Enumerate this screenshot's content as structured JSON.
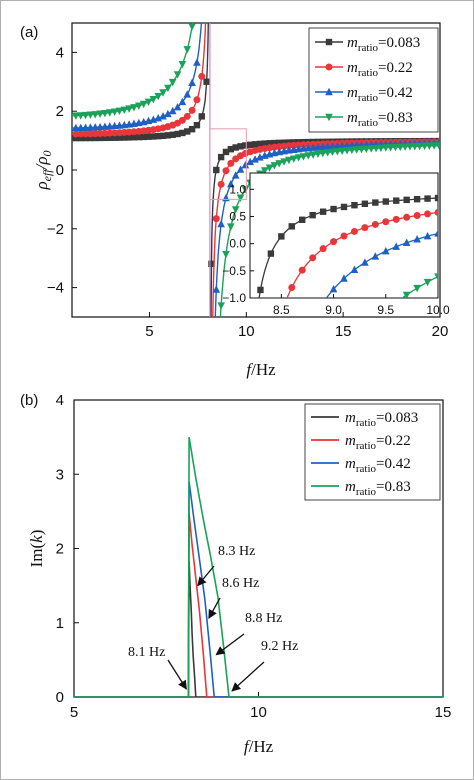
{
  "chart_data": [
    {
      "panel_label": "(a)",
      "type": "line",
      "xlabel": "f/Hz",
      "ylabel": "ρeff/ρ0",
      "xlim": [
        1,
        20
      ],
      "ylim": [
        -5,
        5
      ],
      "xticks": [
        "5",
        "10",
        "15",
        "20"
      ],
      "yticks": [
        "-4",
        "-2",
        "0",
        "2",
        "4"
      ],
      "legend_position": "top-right",
      "legend_prefix": "m",
      "legend_sub": "ratio",
      "series": [
        {
          "name": "=0.083",
          "color": "#3a3a3a",
          "marker": "square",
          "f0": 8.12,
          "B": 0.083
        },
        {
          "name": "=0.22",
          "color": "#e8363a",
          "marker": "circle",
          "f0": 8.12,
          "B": 0.22
        },
        {
          "name": "=0.42",
          "color": "#1f60c4",
          "marker": "triangle-up",
          "f0": 8.12,
          "B": 0.42
        },
        {
          "name": "=0.83",
          "color": "#1aa25a",
          "marker": "triangle-down",
          "f0": 8.12,
          "B": 0.83
        }
      ],
      "inset": {
        "xlim": [
          8.2,
          10.0
        ],
        "ylim": [
          -1.0,
          1.3
        ],
        "xticks": [
          "8.5",
          "9.0",
          "9.5",
          "10.0"
        ],
        "yticks": [
          "1.0",
          "0.5",
          "0.0",
          "-0.5",
          "-1.0"
        ]
      }
    },
    {
      "panel_label": "(b)",
      "type": "line",
      "xlabel": "f/Hz",
      "ylabel": "Im(k)",
      "xlim": [
        5,
        15
      ],
      "ylim": [
        0,
        4
      ],
      "xticks": [
        "5",
        "10",
        "15"
      ],
      "yticks": [
        "0",
        "1",
        "2",
        "3",
        "4"
      ],
      "legend_position": "top-right",
      "legend_prefix": "m",
      "legend_sub": "ratio",
      "series": [
        {
          "name": "=0.083",
          "color": "#3a3a3a",
          "x": [
            5,
            8.1,
            8.12,
            8.15,
            8.18,
            8.2,
            8.23,
            8.27,
            8.3,
            15
          ],
          "y": [
            0,
            0,
            1.83,
            1.45,
            1.15,
            0.85,
            0.55,
            0.25,
            0,
            0
          ]
        },
        {
          "name": "=0.22",
          "color": "#e8363a",
          "x": [
            5,
            8.1,
            8.12,
            8.2,
            8.3,
            8.4,
            8.5,
            8.6,
            15
          ],
          "y": [
            0,
            0,
            2.47,
            2.05,
            1.6,
            1.15,
            0.6,
            0,
            0
          ]
        },
        {
          "name": "=0.42",
          "color": "#1f60c4",
          "x": [
            5,
            8.1,
            8.12,
            8.25,
            8.4,
            8.55,
            8.7,
            8.8,
            15
          ],
          "y": [
            0,
            0,
            2.9,
            2.4,
            1.85,
            1.3,
            0.55,
            0,
            0
          ]
        },
        {
          "name": "=0.83",
          "color": "#1aa25a",
          "x": [
            5,
            8.1,
            8.12,
            8.3,
            8.5,
            8.7,
            8.9,
            9.05,
            9.2,
            15
          ],
          "y": [
            0,
            0,
            3.5,
            2.95,
            2.4,
            1.9,
            1.35,
            0.7,
            0,
            0
          ]
        }
      ],
      "annotations": [
        {
          "text": "8.1 Hz",
          "x": 8.1,
          "y": 0
        },
        {
          "text": "8.3 Hz",
          "x": 8.3,
          "y": 0.8
        },
        {
          "text": "8.6 Hz",
          "x": 8.6,
          "y": 0.55
        },
        {
          "text": "8.8 Hz",
          "x": 8.8,
          "y": 0.3
        },
        {
          "text": "9.2 Hz",
          "x": 9.2,
          "y": 0
        }
      ]
    }
  ]
}
